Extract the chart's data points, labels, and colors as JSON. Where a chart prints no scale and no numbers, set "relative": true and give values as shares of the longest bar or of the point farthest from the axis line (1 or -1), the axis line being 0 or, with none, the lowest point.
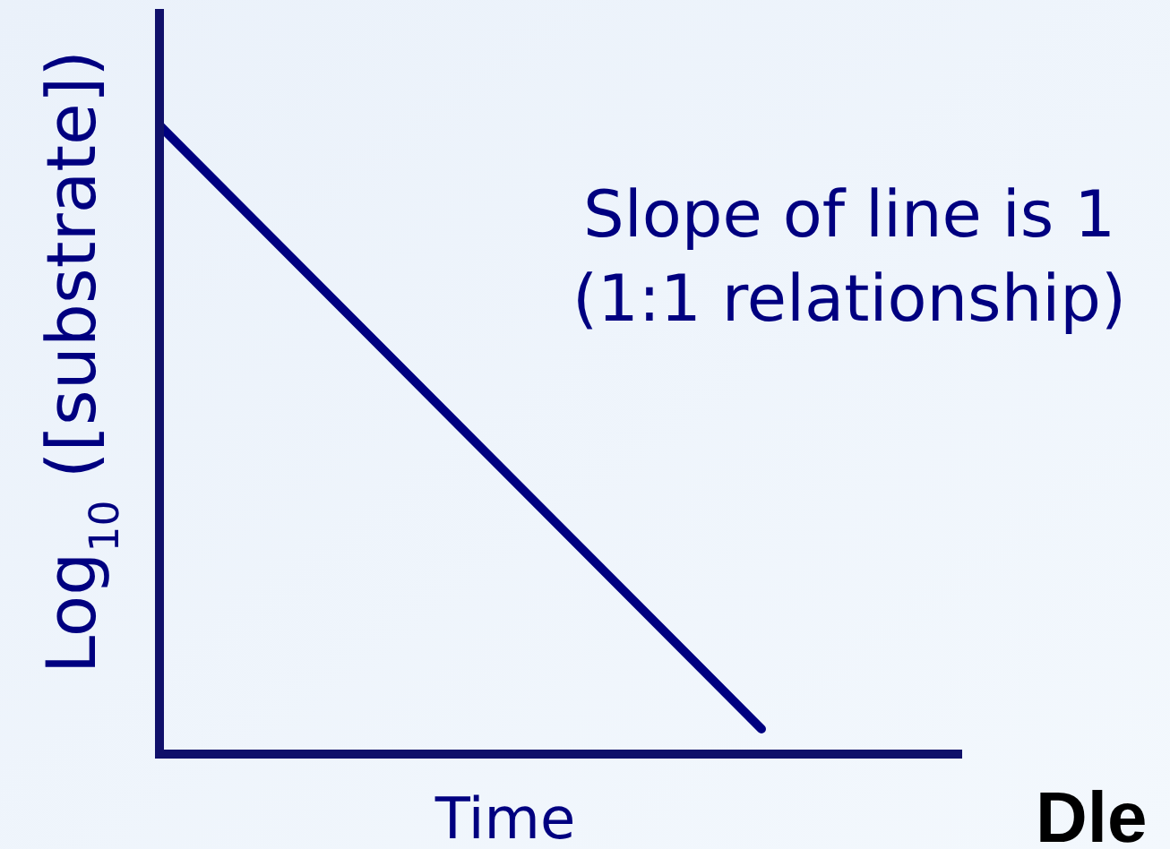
{
  "chart_data": {
    "type": "line",
    "relative": true,
    "xlabel": "Time",
    "ylabel": "Log$_{10}$ ([substrate])",
    "categories": [
      null,
      null,
      null,
      null,
      null
    ],
    "series": [
      {
        "color": "#000080",
        "values": [
          1,
          0.68,
          0.36,
          0.04,
          null
        ]
      }
    ],
    "annotations": [
      "Slope of line is 1",
      "(1:1 relationship)",
      "Dle"
    ]
  }
}
